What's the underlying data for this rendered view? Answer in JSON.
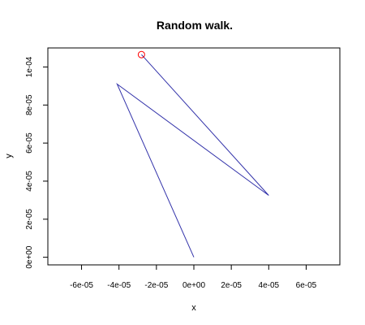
{
  "chart_data": {
    "type": "line",
    "title": "Random walk.",
    "xlabel": "x",
    "ylabel": "y",
    "xlim": [
      -7.8e-05,
      7.8e-05
    ],
    "ylim": [
      -4e-06,
      0.00011
    ],
    "xticks": [
      -6e-05,
      -4e-05,
      -2e-05,
      0,
      2e-05,
      4e-05,
      6e-05
    ],
    "xtick_labels": [
      "-6e-05",
      "-4e-05",
      "-2e-05",
      "0e+00",
      "2e-05",
      "4e-05",
      "6e-05"
    ],
    "yticks": [
      0,
      2e-05,
      4e-05,
      6e-05,
      8e-05,
      0.0001
    ],
    "ytick_labels": [
      "0e+00",
      "2e-05",
      "4e-05",
      "6e-05",
      "8e-05",
      "1e-04"
    ],
    "grid": false,
    "series": [
      {
        "x": [
          0,
          -4.1e-05,
          4e-05,
          -2.8e-05
        ],
        "y": [
          0,
          9.1e-05,
          3.25e-05,
          0.0001065
        ],
        "color": "#3333aa"
      }
    ],
    "end_marker": {
      "x": -2.8e-05,
      "y": 0.0001065,
      "shape": "open-circle",
      "color": "#ff0000"
    }
  }
}
